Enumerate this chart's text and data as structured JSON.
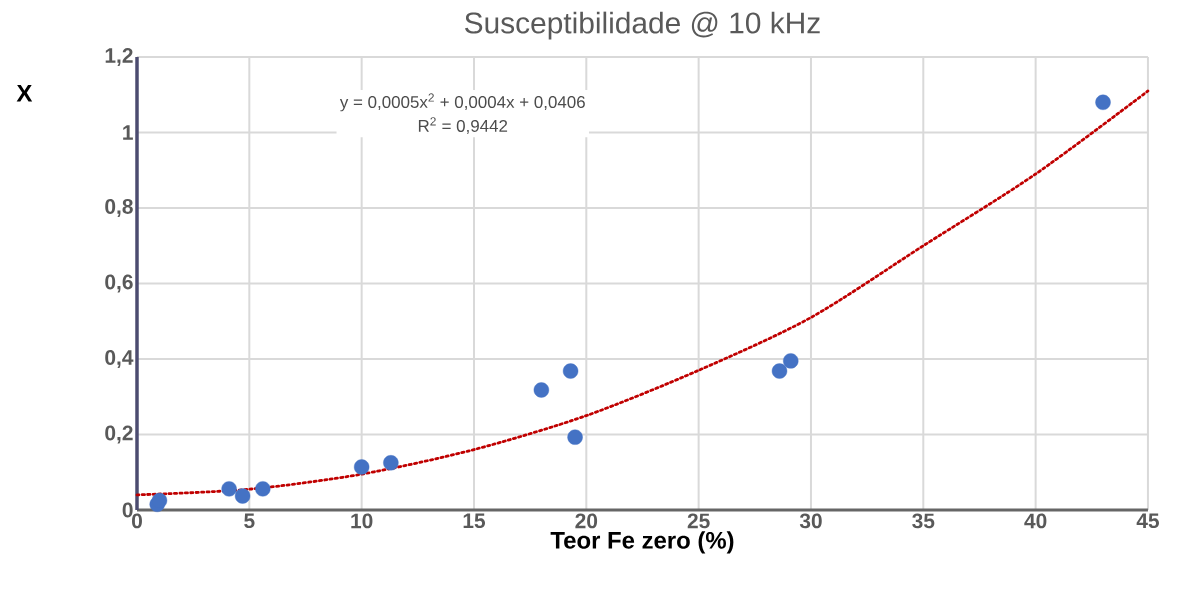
{
  "chart_data": {
    "type": "scatter",
    "title": "Susceptibilidade @ 10 kHz",
    "xlabel": "Teor Fe zero (%)",
    "ylabel": "X",
    "annotations": [
      "y = 0,0005x$^{2}$ + 0,0004x + 0,0406",
      "R$^{2}$ = 0,9442"
    ],
    "series": [
      {
        "color": "#4472c4",
        "marker": "circle",
        "x": [
          0.9,
          1.0,
          4.1,
          4.7,
          5.6,
          10.0,
          11.3,
          18.0,
          19.3,
          19.5,
          28.6,
          29.1,
          43.0
        ],
        "values": [
          0.015,
          0.025,
          0.056,
          0.037,
          0.056,
          0.114,
          0.125,
          0.318,
          0.368,
          0.193,
          0.368,
          0.395,
          1.08
        ]
      },
      {
        "type": "line",
        "color": "#c00000",
        "line_style": "dotted",
        "marker": "none",
        "x": [
          0,
          5,
          10,
          15,
          20,
          25,
          30,
          35,
          40,
          45
        ],
        "values": [
          0.04,
          0.055,
          0.095,
          0.16,
          0.25,
          0.37,
          0.51,
          0.7,
          0.89,
          1.11
        ]
      }
    ],
    "xlim": [
      0,
      45
    ],
    "xticks": [
      0,
      5,
      10,
      15,
      20,
      25,
      30,
      35,
      40,
      45
    ],
    "ylim": [
      0,
      1.2
    ],
    "yticks": [
      0,
      {
        "value": 0.2,
        "label": "0,2"
      },
      {
        "value": 0.4,
        "label": "0,4"
      },
      {
        "value": 0.6,
        "label": "0,6"
      },
      {
        "value": 0.8,
        "label": "0,8"
      },
      1,
      {
        "value": 1.2,
        "label": "1,2"
      }
    ],
    "grid": true
  }
}
